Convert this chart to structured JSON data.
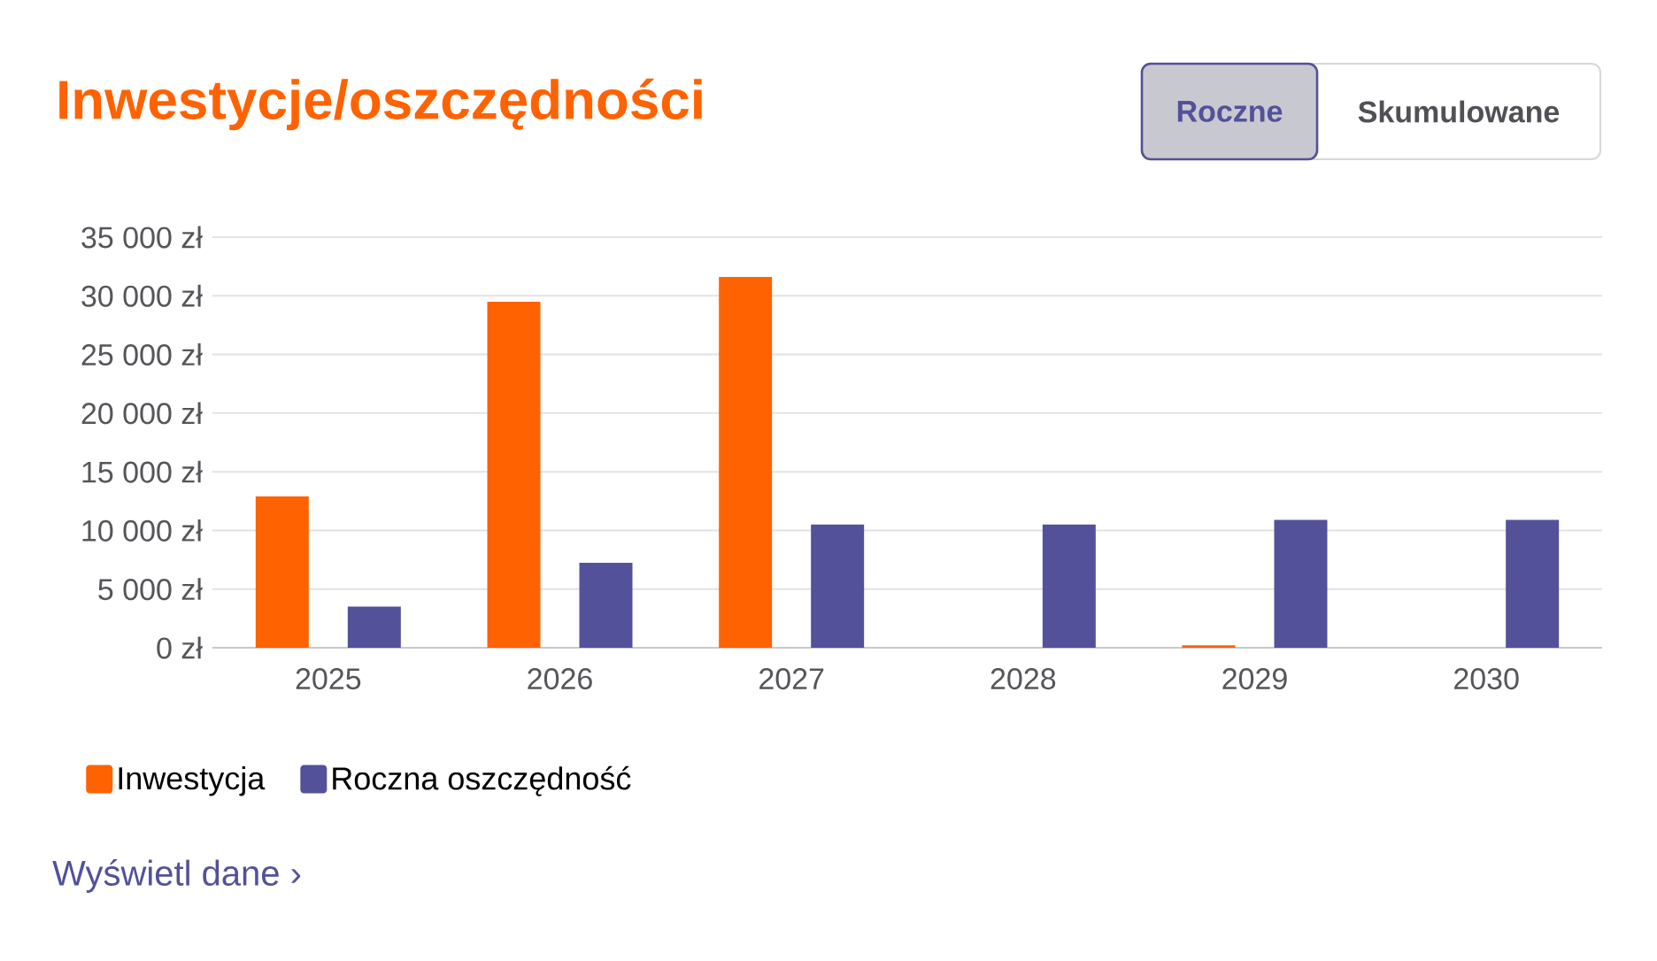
{
  "chart_data": {
    "type": "bar",
    "title": "Inwestycje/oszczędności",
    "categories": [
      "2025",
      "2026",
      "2027",
      "2028",
      "2029",
      "2030"
    ],
    "series": [
      {
        "name": "Inwestycja",
        "color": "#ff6200",
        "values": [
          12900,
          29500,
          31600,
          null,
          200,
          null
        ]
      },
      {
        "name": "Roczna oszczędność",
        "color": "#525199",
        "values": [
          3500,
          7250,
          10500,
          10500,
          10900,
          10900
        ]
      }
    ],
    "ylim": [
      0,
      35000
    ],
    "yticks": [
      {
        "value": 0,
        "label": "0 zł"
      },
      {
        "value": 5000,
        "label": "5 000 zł"
      },
      {
        "value": 10000,
        "label": "10 000 zł"
      },
      {
        "value": 15000,
        "label": "15 000 zł"
      },
      {
        "value": 20000,
        "label": "20 000 zł"
      },
      {
        "value": 25000,
        "label": "25 000 zł"
      },
      {
        "value": 30000,
        "label": "30 000 zł"
      },
      {
        "value": 35000,
        "label": "35 000 zł"
      }
    ],
    "grid": "y",
    "legend": "bottom left",
    "annotations": [
      "Roczne",
      "Skumulowane",
      "Wyświetl dane ›"
    ]
  }
}
